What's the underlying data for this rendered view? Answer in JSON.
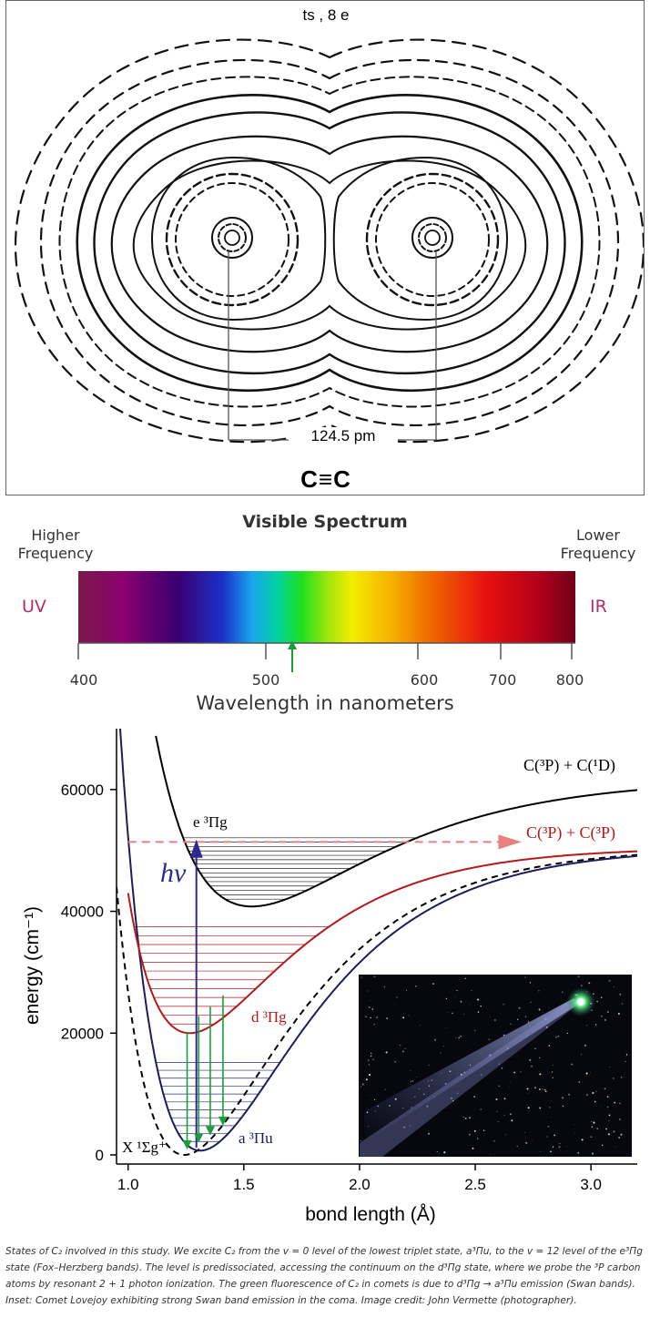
{
  "density_plot": {
    "title": "ts , 8 e",
    "bond_length_label": "124.5 pm",
    "formula": "C≡C"
  },
  "spectrum": {
    "title": "Visible Spectrum",
    "higher_frequency": [
      "Higher",
      "Frequency"
    ],
    "lower_frequency": [
      "Lower",
      "Frequency"
    ],
    "uv_label": "UV",
    "ir_label": "IR",
    "ticks": [
      "400",
      "500",
      "600",
      "700",
      "800"
    ],
    "axis_label": "Wavelength in nanometers",
    "marker_wavelength_nm": 518,
    "marker_color": "#1a9e3a"
  },
  "energy_diagram": {
    "y_axis_label": "energy (cm⁻¹)",
    "x_axis_label": "bond length (Å)",
    "y_ticks": [
      "0",
      "20000",
      "40000",
      "60000"
    ],
    "x_ticks": [
      "1.0",
      "1.5",
      "2.0",
      "2.5",
      "3.0"
    ],
    "xlim": [
      0.95,
      3.2
    ],
    "ylim": [
      -1500,
      70000
    ],
    "states": [
      {
        "label": "X ¹Σg⁺",
        "color": "#000000"
      },
      {
        "label": "a ³Πu",
        "color": "#1c1c5e"
      },
      {
        "label": "d ³Πg",
        "color": "#b21a1a"
      },
      {
        "label": "e ³Πg",
        "color": "#000000"
      }
    ],
    "asymptotes": [
      {
        "label": "C(³P) + C(¹D)",
        "color": "#000000"
      },
      {
        "label": "C(³P) + C(³P)",
        "color": "#b21a1a"
      }
    ],
    "excitation_label": "hν",
    "excitation_color": "#2e2a8c",
    "fluorescence_color": "#1a9e3a",
    "dissociation_arrow_color": "#e88080"
  },
  "caption": "States of C₂ involved in this study. We excite C₂ from the v = 0 level of the lowest triplet state, a³Πu, to the v = 12 level of the e³Πg state (Fox–Herzberg bands). The level is predissociated, accessing the continuum on the d³Πg state, where we probe the ³P carbon atoms by resonant 2 + 1 photon ionization. The green fluorescence of C₂ in comets is due to d³Πg → a³Πu emission (Swan bands). Inset: Comet Lovejoy exhibiting strong Swan band emission in the coma. Image credit: John Vermette (photographer)."
}
